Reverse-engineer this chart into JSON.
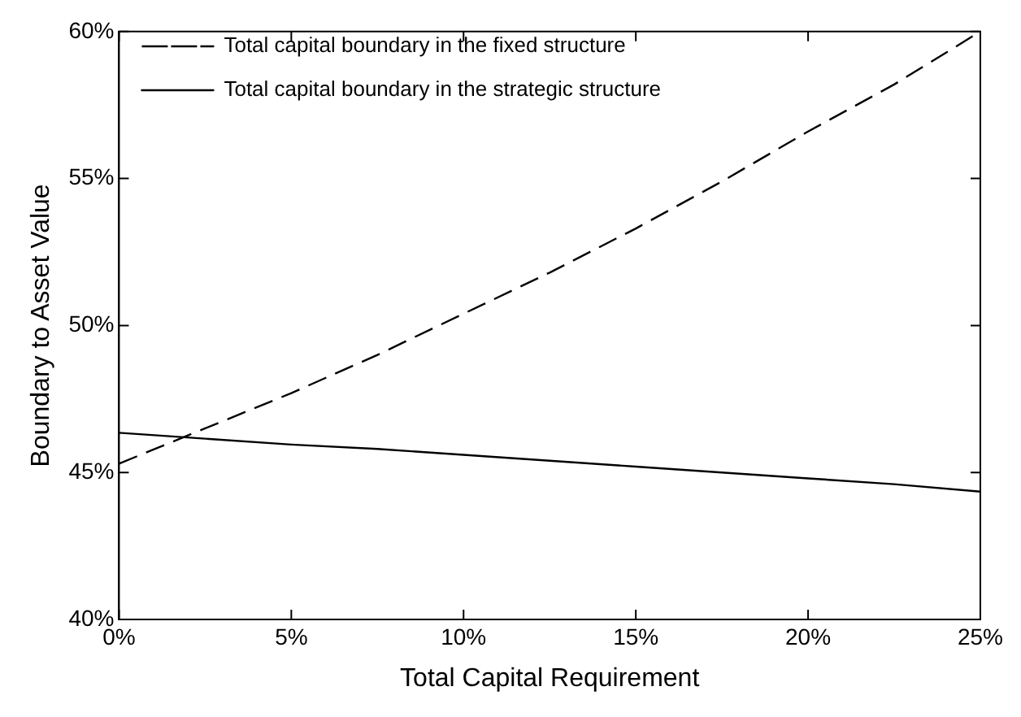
{
  "chart_data": {
    "type": "line",
    "xlabel": "Total Capital Requirement",
    "ylabel": "Boundary to Asset Value",
    "x": [
      0,
      2.5,
      5,
      7.5,
      10,
      12.5,
      15,
      17.5,
      20,
      22.5,
      25
    ],
    "series": [
      {
        "name": "Total capital boundary in the fixed structure",
        "color": "#000000",
        "line_style": "dashed",
        "values": [
          45.3,
          46.5,
          47.7,
          49.0,
          50.4,
          51.8,
          53.3,
          54.9,
          56.6,
          58.2,
          60
        ]
      },
      {
        "name": "Total capital boundary in the strategic structure",
        "color": "#000000",
        "line_style": "solid",
        "values": [
          46.35,
          46.15,
          45.95,
          45.8,
          45.6,
          45.4,
          45.2,
          45.0,
          44.8,
          44.6,
          44.35
        ]
      }
    ],
    "xlim": [
      0,
      25
    ],
    "xticks": [
      {
        "value": 0,
        "label": "0%"
      },
      {
        "value": 5,
        "label": "5%"
      },
      {
        "value": 10,
        "label": "10%"
      },
      {
        "value": 15,
        "label": "15%"
      },
      {
        "value": 20,
        "label": "20%"
      },
      {
        "value": 25,
        "label": "25%"
      }
    ],
    "ylim": [
      40,
      60
    ],
    "yticks": [
      {
        "value": 40,
        "label": "40%"
      },
      {
        "value": 45,
        "label": "45%"
      },
      {
        "value": 50,
        "label": "50%"
      },
      {
        "value": 55,
        "label": "55%"
      },
      {
        "value": 60,
        "label": "60%"
      }
    ],
    "grid": false,
    "legend": "top left",
    "marker": "none"
  }
}
